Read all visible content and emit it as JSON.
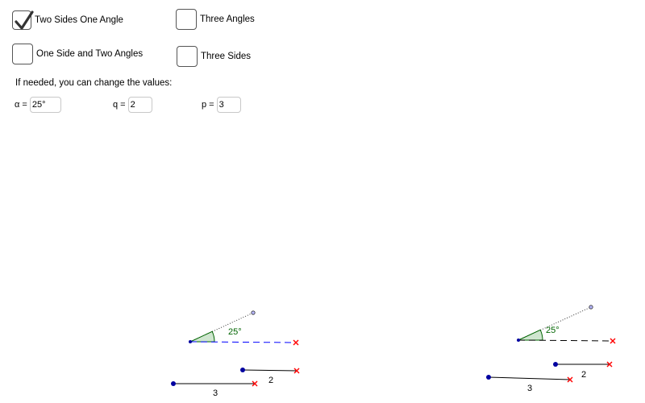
{
  "checkboxes": [
    {
      "label": "Two Sides One Angle",
      "checked": true
    },
    {
      "label": "Three Angles",
      "checked": false
    },
    {
      "label": "One Side and Two Angles",
      "checked": false
    },
    {
      "label": "Three Sides",
      "checked": false
    }
  ],
  "hint": "If needed, you can change the values:",
  "fields": {
    "alpha": {
      "label": "α =",
      "value": "25°"
    },
    "q": {
      "label": "q =",
      "value": "2"
    },
    "p": {
      "label": "p =",
      "value": "3"
    }
  },
  "figures": {
    "left": {
      "angle_label": "25°",
      "q_label": "2",
      "p_label": "3"
    },
    "right": {
      "angle_label": "25°",
      "q_label": "2",
      "p_label": "3"
    }
  },
  "colors": {
    "angle": "#006400",
    "ray": "#0000ff",
    "marker": "#ff0000",
    "point": "#0000a0"
  }
}
